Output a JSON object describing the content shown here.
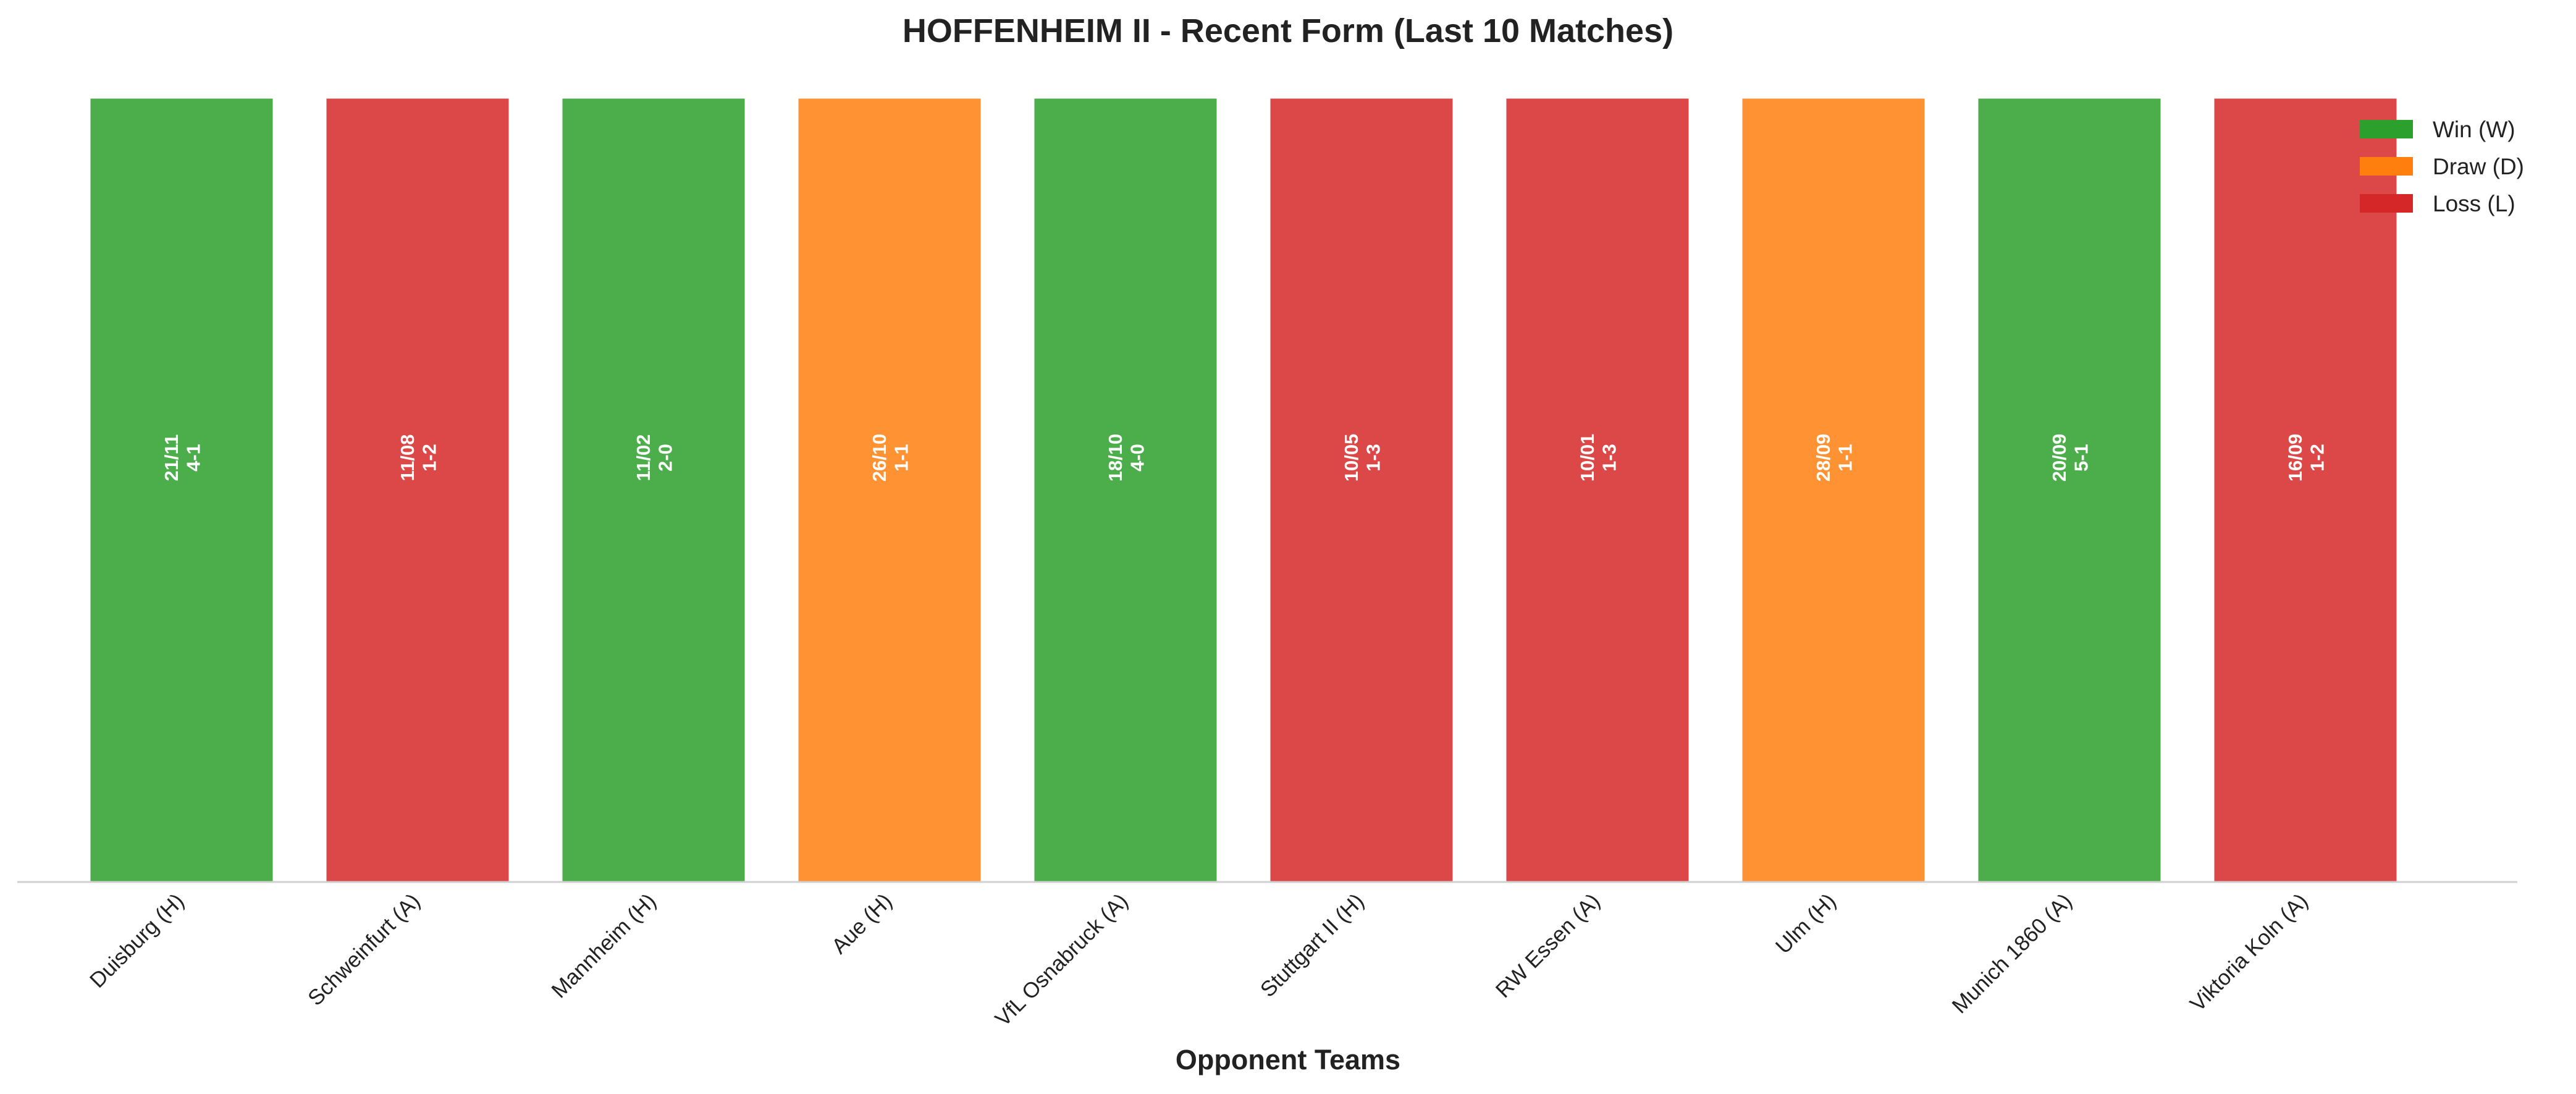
{
  "chart_data": {
    "type": "bar",
    "title": "HOFFENHEIM II - Recent Form (Last 10 Matches)",
    "xlabel": "Opponent Teams",
    "ylabel": "",
    "ylim": [
      0,
      1
    ],
    "grid": false,
    "legend_position": "top-right",
    "categories": [
      "Duisburg (H)",
      "Schweinfurt (A)",
      "Mannheim (H)",
      "Aue (H)",
      "VfL Osnabruck (A)",
      "Stuttgart II (H)",
      "RW Essen (A)",
      "Ulm (H)",
      "Munich 1860 (A)",
      "Viktoria Koln (A)"
    ],
    "values": [
      1,
      1,
      1,
      1,
      1,
      1,
      1,
      1,
      1,
      1
    ],
    "results": [
      "W",
      "L",
      "W",
      "D",
      "W",
      "L",
      "L",
      "D",
      "W",
      "L"
    ],
    "dates": [
      "21/11",
      "11/08",
      "11/02",
      "26/10",
      "18/10",
      "10/05",
      "10/01",
      "28/09",
      "20/09",
      "16/09"
    ],
    "scores": [
      "4-1",
      "1-2",
      "2-0",
      "1-1",
      "4-0",
      "1-3",
      "1-3",
      "1-1",
      "5-1",
      "1-2"
    ],
    "legend": [
      {
        "key": "W",
        "label": "Win (W)",
        "color": "#2ca02c"
      },
      {
        "key": "D",
        "label": "Draw (D)",
        "color": "#ff7f0e"
      },
      {
        "key": "L",
        "label": "Loss (L)",
        "color": "#d62728"
      }
    ],
    "colors": {
      "W": "#2ca02c",
      "D": "#ff7f0e",
      "L": "#d62728"
    }
  }
}
